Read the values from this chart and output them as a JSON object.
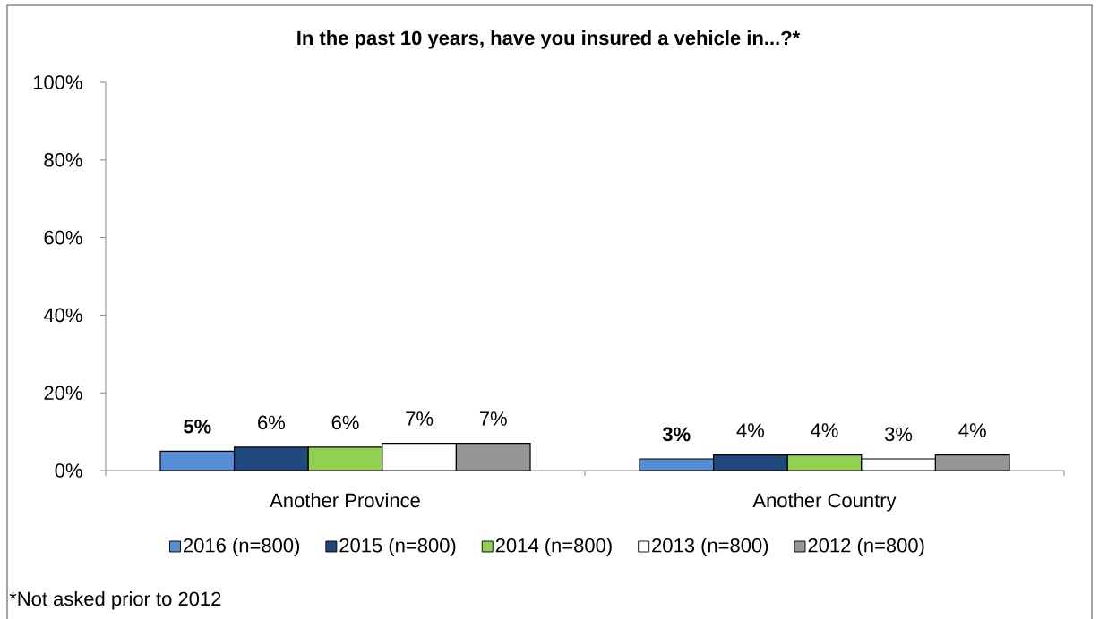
{
  "chart_data": {
    "type": "bar",
    "title": "In the past 10 years, have you insured a vehicle in...?*",
    "categories": [
      "Another Province",
      "Another Country"
    ],
    "series": [
      {
        "name": "2016 (n=800)",
        "color": "#558ed5",
        "values": [
          5,
          3
        ],
        "value_labels": [
          "5%",
          "3%"
        ]
      },
      {
        "name": "2015 (n=800)",
        "color": "#1f497d",
        "values": [
          6,
          4
        ],
        "value_labels": [
          "6%",
          "4%"
        ]
      },
      {
        "name": "2014 (n=800)",
        "color": "#92d050",
        "values": [
          6,
          4
        ],
        "value_labels": [
          "6%",
          "4%"
        ]
      },
      {
        "name": "2013 (n=800)",
        "color": "#ffffff",
        "values": [
          7,
          3
        ],
        "value_labels": [
          "7%",
          "3%"
        ]
      },
      {
        "name": "2012 (n=800)",
        "color": "#969696",
        "values": [
          7,
          4
        ],
        "value_labels": [
          "7%",
          "4%"
        ]
      }
    ],
    "ylim": [
      0,
      100
    ],
    "yticks": [
      {
        "value": 0,
        "label": "0%"
      },
      {
        "value": 20,
        "label": "20%"
      },
      {
        "value": 40,
        "label": "40%"
      },
      {
        "value": 60,
        "label": "60%"
      },
      {
        "value": 80,
        "label": "80%"
      },
      {
        "value": 100,
        "label": "100%"
      }
    ],
    "grid": false,
    "legend": "bottom",
    "annotations": [
      "*Not asked prior to 2012"
    ]
  }
}
